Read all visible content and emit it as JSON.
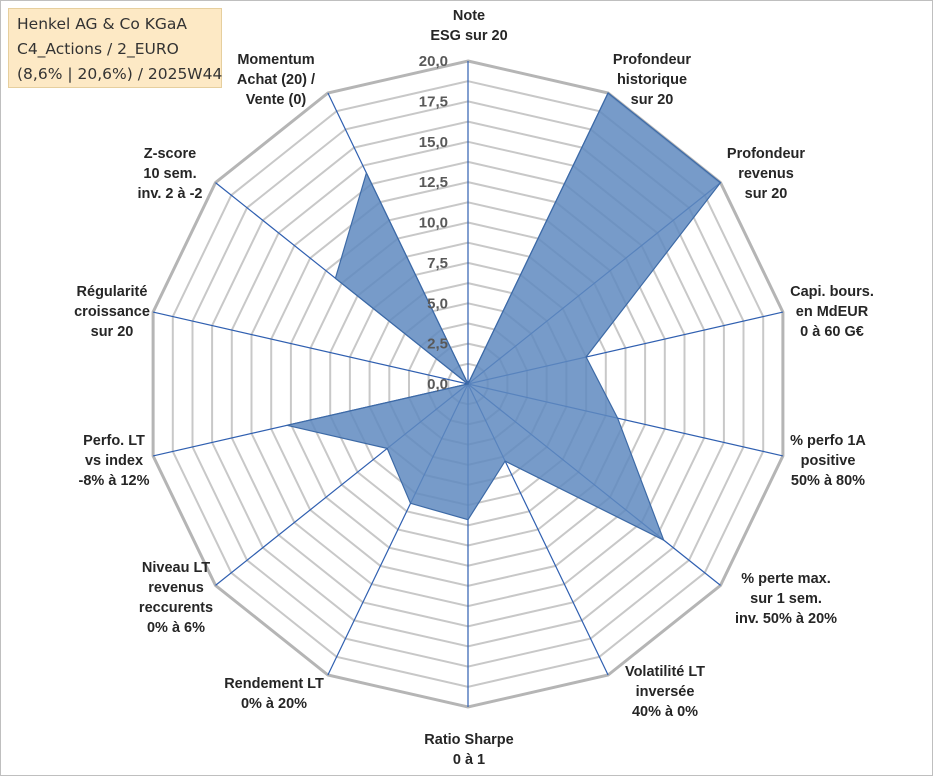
{
  "title": {
    "line1": "Henkel AG & Co KGaA",
    "line2": "C4_Actions / 2_EURO",
    "line3": "(8,6% | 20,6%) / 2025W44"
  },
  "colors": {
    "grid": "#c8c8c8",
    "spoke": "#2f5fb0",
    "fill": "#5f8ac0",
    "stroke": "#3d6aa6",
    "title_bg": "#fde9c5"
  },
  "chart_data": {
    "type": "radar",
    "title": "Henkel AG & Co KGaA",
    "rlim": [
      0,
      20
    ],
    "ticks": [
      "0,0",
      "2,5",
      "5,0",
      "7,5",
      "10,0",
      "12,5",
      "15,0",
      "17,5",
      "20,0"
    ],
    "tick_values": [
      0,
      2.5,
      5,
      7.5,
      10,
      12.5,
      15,
      17.5,
      20
    ],
    "minor_step": 1.25,
    "axes": [
      {
        "label": [
          "Note",
          "ESG sur 20"
        ],
        "value": 0
      },
      {
        "label": [
          "Profondeur",
          "historique",
          "sur 20"
        ],
        "value": 20
      },
      {
        "label": [
          "Profondeur",
          "revenus",
          "sur 20"
        ],
        "value": 20
      },
      {
        "label": [
          "Capi. bours.",
          "en MdEUR",
          "0 à 60 G€"
        ],
        "value": 7.5
      },
      {
        "label": [
          "% perfo 1A",
          "positive",
          "50% à 80%"
        ],
        "value": 9.5
      },
      {
        "label": [
          "% perte max.",
          "sur 1 sem.",
          "inv. 50% à 20%"
        ],
        "value": 15.5
      },
      {
        "label": [
          "Volatilité LT",
          "inversée",
          "40% à 0%"
        ],
        "value": 5.3
      },
      {
        "label": [
          "Ratio Sharpe",
          "0 à 1"
        ],
        "value": 8.4
      },
      {
        "label": [
          "Rendement LT",
          "0% à 20%"
        ],
        "value": 8.2
      },
      {
        "label": [
          "Niveau LT",
          "revenus",
          "reccurents",
          "0% à 6%"
        ],
        "value": 6.4
      },
      {
        "label": [
          "Perfo. LT",
          "vs index",
          "-8% à 12%"
        ],
        "value": 11.5
      },
      {
        "label": [
          "Régularité",
          "croissance",
          "sur 20"
        ],
        "value": 0
      },
      {
        "label": [
          "Z-score",
          "10 sem.",
          "inv. 2 à -2"
        ],
        "value": 10.5
      },
      {
        "label": [
          "Momentum",
          "Achat (20) /",
          "Vente (0)"
        ],
        "value": 14.5
      }
    ]
  }
}
